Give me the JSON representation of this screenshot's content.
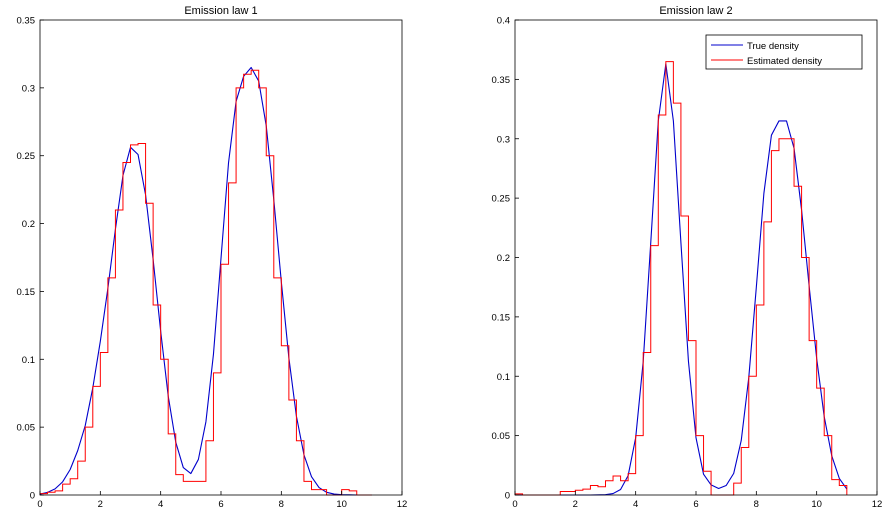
{
  "chart_data": [
    {
      "type": "line",
      "title": "Emission law 1",
      "xlabel": "",
      "ylabel": "",
      "xlim": [
        0,
        12
      ],
      "ylim": [
        0,
        0.35
      ],
      "xticks": [
        "0",
        "2",
        "4",
        "6",
        "8",
        "10",
        "12"
      ],
      "yticks": [
        "0",
        "0.05",
        "0.1",
        "0.15",
        "0.2",
        "0.25",
        "0.3",
        "0.35"
      ],
      "grid": false,
      "series": [
        {
          "name": "",
          "kind": "curve",
          "color": "#0000cc",
          "x": [
            0.0,
            0.25,
            0.5,
            0.75,
            1.0,
            1.25,
            1.5,
            1.75,
            2.0,
            2.25,
            2.5,
            2.75,
            3.0,
            3.25,
            3.5,
            3.75,
            4.0,
            4.25,
            4.5,
            4.75,
            5.0,
            5.25,
            5.5,
            5.75,
            6.0,
            6.25,
            6.5,
            6.75,
            7.0,
            7.25,
            7.5,
            7.75,
            8.0,
            8.25,
            8.5,
            8.75,
            9.0,
            9.25,
            9.5,
            9.75,
            10.0,
            10.25,
            10.5,
            10.75,
            11.0
          ],
          "y": [
            0.0007,
            0.0019,
            0.0045,
            0.0097,
            0.0188,
            0.0327,
            0.0512,
            0.0789,
            0.1133,
            0.1523,
            0.1959,
            0.2354,
            0.2562,
            0.2509,
            0.2211,
            0.1735,
            0.1207,
            0.0729,
            0.0389,
            0.0202,
            0.0158,
            0.0262,
            0.054,
            0.1038,
            0.1744,
            0.2449,
            0.29,
            0.3085,
            0.315,
            0.305,
            0.272,
            0.2176,
            0.157,
            0.101,
            0.058,
            0.0296,
            0.0135,
            0.0055,
            0.002,
            0.0007,
            0.0002,
            0.0001,
            0.0,
            0.0,
            0.0
          ]
        },
        {
          "name": "",
          "kind": "step",
          "color": "#ff0000",
          "edges": [
            0.0,
            0.25,
            0.5,
            0.75,
            1.0,
            1.25,
            1.5,
            1.75,
            2.0,
            2.25,
            2.5,
            2.75,
            3.0,
            3.25,
            3.5,
            3.75,
            4.0,
            4.25,
            4.5,
            4.75,
            5.0,
            5.25,
            5.5,
            5.75,
            6.0,
            6.25,
            6.5,
            6.75,
            7.0,
            7.25,
            7.5,
            7.75,
            8.0,
            8.25,
            8.5,
            8.75,
            9.0,
            9.25,
            9.5,
            9.75,
            10.0,
            10.25,
            10.5,
            10.75,
            11.0
          ],
          "heights": [
            0.001,
            0.002,
            0.003,
            0.008,
            0.012,
            0.025,
            0.05,
            0.08,
            0.105,
            0.16,
            0.21,
            0.245,
            0.258,
            0.259,
            0.215,
            0.14,
            0.1,
            0.045,
            0.015,
            0.01,
            0.01,
            0.01,
            0.04,
            0.09,
            0.17,
            0.23,
            0.3,
            0.31,
            0.313,
            0.3,
            0.25,
            0.16,
            0.11,
            0.07,
            0.04,
            0.01,
            0.004,
            0.004,
            0.0,
            0.0,
            0.004,
            0.003,
            0.0,
            0.0
          ]
        }
      ]
    },
    {
      "type": "line",
      "title": "Emission law 2",
      "xlabel": "",
      "ylabel": "",
      "xlim": [
        0,
        12
      ],
      "ylim": [
        0,
        0.4
      ],
      "xticks": [
        "0",
        "2",
        "4",
        "6",
        "8",
        "10",
        "12"
      ],
      "yticks": [
        "0",
        "0.05",
        "0.1",
        "0.15",
        "0.2",
        "0.25",
        "0.3",
        "0.35",
        "0.4"
      ],
      "grid": false,
      "legend": {
        "placement": "top-right",
        "entries": [
          {
            "label": "True density",
            "color": "#0000cc"
          },
          {
            "label": "Estimated density",
            "color": "#ff0000"
          }
        ]
      },
      "series": [
        {
          "name": "True density",
          "kind": "curve",
          "color": "#0000cc",
          "x": [
            0.0,
            0.5,
            1.0,
            1.5,
            2.0,
            2.5,
            3.0,
            3.25,
            3.5,
            3.75,
            4.0,
            4.25,
            4.5,
            4.75,
            5.0,
            5.25,
            5.5,
            5.75,
            6.0,
            6.25,
            6.5,
            6.75,
            7.0,
            7.25,
            7.5,
            7.75,
            8.0,
            8.25,
            8.5,
            8.75,
            9.0,
            9.25,
            9.5,
            9.75,
            10.0,
            10.25,
            10.5,
            10.75,
            11.0
          ],
          "y": [
            0.0,
            0.0,
            0.0,
            0.0,
            0.0,
            0.0,
            0.0003,
            0.0012,
            0.0046,
            0.0163,
            0.0482,
            0.1125,
            0.2125,
            0.315,
            0.363,
            0.315,
            0.2125,
            0.1125,
            0.0482,
            0.0175,
            0.0085,
            0.0055,
            0.008,
            0.0182,
            0.046,
            0.099,
            0.175,
            0.254,
            0.303,
            0.315,
            0.315,
            0.292,
            0.24,
            0.176,
            0.115,
            0.066,
            0.033,
            0.014,
            0.005
          ]
        },
        {
          "name": "Estimated density",
          "kind": "step",
          "color": "#ff0000",
          "edges": [
            0.0,
            0.25,
            0.5,
            0.75,
            1.0,
            1.25,
            1.5,
            1.75,
            2.0,
            2.25,
            2.5,
            2.75,
            3.0,
            3.25,
            3.5,
            3.75,
            4.0,
            4.25,
            4.5,
            4.75,
            5.0,
            5.25,
            5.5,
            5.75,
            6.0,
            6.25,
            6.5,
            6.75,
            7.0,
            7.25,
            7.5,
            7.75,
            8.0,
            8.25,
            8.5,
            8.75,
            9.0,
            9.25,
            9.5,
            9.75,
            10.0,
            10.25,
            10.5,
            10.75,
            11.0
          ],
          "heights": [
            0.001,
            0.0,
            0.0,
            0.0,
            0.0,
            0.0,
            0.003,
            0.003,
            0.004,
            0.005,
            0.008,
            0.007,
            0.012,
            0.016,
            0.012,
            0.018,
            0.05,
            0.12,
            0.21,
            0.32,
            0.365,
            0.33,
            0.235,
            0.13,
            0.05,
            0.02,
            0.0,
            0.0,
            0.0,
            0.01,
            0.04,
            0.1,
            0.16,
            0.23,
            0.29,
            0.3,
            0.3,
            0.26,
            0.2,
            0.13,
            0.09,
            0.05,
            0.013,
            0.008
          ]
        }
      ]
    }
  ]
}
